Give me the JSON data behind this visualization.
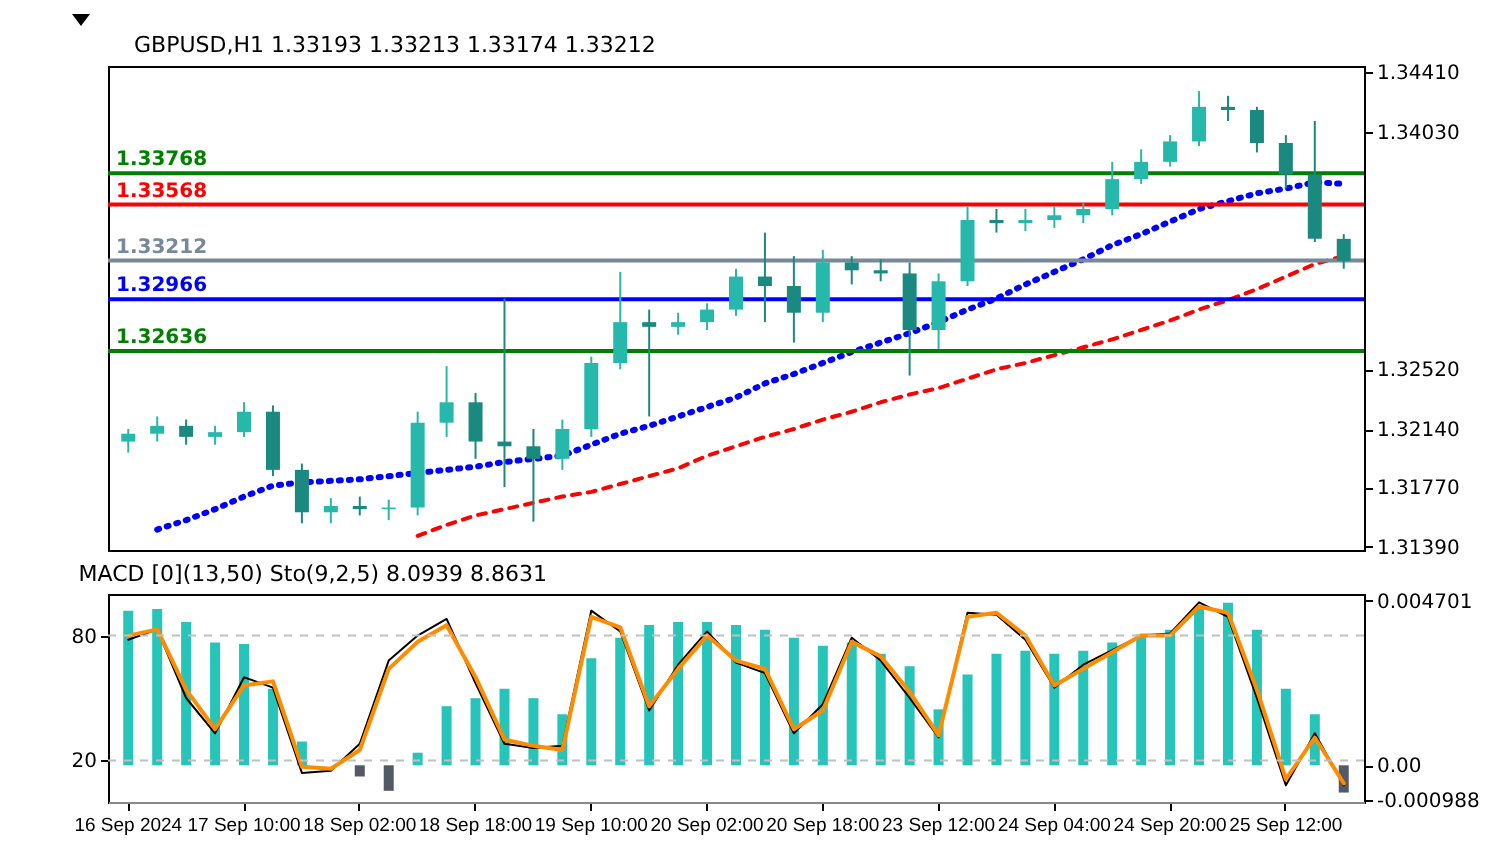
{
  "chart_data": [
    {
      "type": "candlestick",
      "title": "GBPUSD,H1 1.33193 1.33213 1.33174 1.33212",
      "categories": [
        null,
        null,
        null,
        null,
        null,
        null,
        null,
        null,
        null,
        null,
        null,
        null,
        null,
        null,
        null,
        null,
        null,
        null,
        null,
        null,
        null,
        null,
        null,
        null,
        null,
        null,
        null,
        null,
        null,
        null,
        null,
        null,
        null,
        null,
        null,
        null,
        null,
        null,
        null,
        null,
        null,
        null,
        null
      ],
      "ohlc": [
        [
          1.3206,
          1.3214,
          1.3199,
          1.3211
        ],
        [
          1.3211,
          1.3222,
          1.3206,
          1.3216
        ],
        [
          1.3216,
          1.322,
          1.3204,
          1.3209
        ],
        [
          1.3209,
          1.3216,
          1.3204,
          1.3212
        ],
        [
          1.3212,
          1.3231,
          1.3209,
          1.3225
        ],
        [
          1.3225,
          1.3229,
          1.3184,
          1.3188
        ],
        [
          1.3188,
          1.3192,
          1.3154,
          1.3161
        ],
        [
          1.3161,
          1.317,
          1.3154,
          1.3165
        ],
        [
          1.3165,
          1.3171,
          1.3159,
          1.3163
        ],
        [
          1.3163,
          1.3169,
          1.3156,
          1.3164
        ],
        [
          1.3164,
          1.3225,
          1.3159,
          1.3218
        ],
        [
          1.3218,
          1.3254,
          1.3209,
          1.3231
        ],
        [
          1.3231,
          1.3237,
          1.3195,
          1.3206
        ],
        [
          1.3206,
          1.3297,
          1.3177,
          1.3203
        ],
        [
          1.3203,
          1.3214,
          1.3155,
          1.3195
        ],
        [
          1.3195,
          1.322,
          1.3188,
          1.3214
        ],
        [
          1.3214,
          1.326,
          1.3209,
          1.3256
        ],
        [
          1.3256,
          1.3314,
          1.3252,
          1.3282
        ],
        [
          1.3282,
          1.329,
          1.3222,
          1.3279
        ],
        [
          1.3279,
          1.3288,
          1.3274,
          1.3282
        ],
        [
          1.3282,
          1.3294,
          1.3277,
          1.329
        ],
        [
          1.329,
          1.3316,
          1.3286,
          1.3311
        ],
        [
          1.3311,
          1.3339,
          1.3282,
          1.3305
        ],
        [
          1.3305,
          1.3324,
          1.3269,
          1.3288
        ],
        [
          1.3288,
          1.3328,
          1.3282,
          1.332
        ],
        [
          1.332,
          1.3324,
          1.3306,
          1.3315
        ],
        [
          1.3315,
          1.3322,
          1.3308,
          1.3313
        ],
        [
          1.3313,
          1.332,
          1.3248,
          1.3277
        ],
        [
          1.3277,
          1.3313,
          1.3265,
          1.3308
        ],
        [
          1.3308,
          1.3356,
          1.3305,
          1.3347
        ],
        [
          1.3347,
          1.3354,
          1.3339,
          1.3345
        ],
        [
          1.3345,
          1.3354,
          1.334,
          1.3347
        ],
        [
          1.3347,
          1.3356,
          1.3342,
          1.335
        ],
        [
          1.335,
          1.3358,
          1.3345,
          1.3354
        ],
        [
          1.3354,
          1.3384,
          1.335,
          1.3373
        ],
        [
          1.3373,
          1.3392,
          1.337,
          1.3384
        ],
        [
          1.3384,
          1.3401,
          1.3381,
          1.3397
        ],
        [
          1.3397,
          1.3429,
          1.3394,
          1.3419
        ],
        [
          1.3419,
          1.3426,
          1.341,
          1.3417
        ],
        [
          1.3417,
          1.3419,
          1.339,
          1.3396
        ],
        [
          1.3396,
          1.3401,
          1.3367,
          1.3376
        ],
        [
          1.3376,
          1.341,
          1.3333,
          1.3335
        ],
        [
          1.3335,
          1.3338,
          1.3316,
          1.3321
        ]
      ],
      "colors": [
        "#26b8ab",
        "#26b8ab",
        "#1a8a80",
        "#26b8ab",
        "#26b8ab",
        "#1a8a80",
        "#1a8a80",
        "#26b8ab",
        "#1a8a80",
        "#26b8ab",
        "#26b8ab",
        "#26b8ab",
        "#1a8a80",
        "#1a8a80",
        "#1a8a80",
        "#26b8ab",
        "#26b8ab",
        "#26b8ab",
        "#1a8a80",
        "#26b8ab",
        "#26b8ab",
        "#26b8ab",
        "#1a8a80",
        "#1a8a80",
        "#26b8ab",
        "#1a8a80",
        "#1a8a80",
        "#1a8a80",
        "#26b8ab",
        "#26b8ab",
        "#1a8a80",
        "#26b8ab",
        "#26b8ab",
        "#26b8ab",
        "#26b8ab",
        "#26b8ab",
        "#26b8ab",
        "#26b8ab",
        "#1a8a80",
        "#1a8a80",
        "#1a8a80",
        "#1a8a80",
        "#1a8a80"
      ],
      "series": [
        {
          "type": "line",
          "color": "#0000ff",
          "line_style": "dotted",
          "values": [
            null,
            1.315,
            1.3156,
            1.3163,
            1.3171,
            1.3178,
            1.318,
            1.3181,
            1.3182,
            1.3184,
            1.3186,
            1.3188,
            1.319,
            1.3193,
            1.3195,
            1.3197,
            1.3204,
            1.3211,
            1.3216,
            1.3222,
            1.3228,
            1.3234,
            1.3243,
            1.3249,
            1.3256,
            1.3263,
            1.3269,
            1.3275,
            1.3282,
            1.329,
            1.3297,
            1.3306,
            1.3314,
            1.3322,
            1.3331,
            1.3338,
            1.3346,
            1.3354,
            1.3359,
            1.3364,
            1.3367,
            1.3371,
            1.337
          ]
        },
        {
          "type": "line",
          "color": "#ff0000",
          "line_style": "dashed",
          "values": [
            null,
            null,
            null,
            null,
            null,
            null,
            null,
            null,
            null,
            null,
            1.3146,
            1.3153,
            1.3159,
            1.3163,
            1.3167,
            1.3171,
            1.3174,
            1.3179,
            1.3184,
            1.3189,
            1.3197,
            1.3203,
            1.3209,
            1.3214,
            1.322,
            1.3225,
            1.3231,
            1.3236,
            1.324,
            1.3246,
            1.3252,
            1.3256,
            1.3261,
            1.3266,
            1.3271,
            1.3277,
            1.3283,
            1.329,
            1.3296,
            1.3303,
            1.3311,
            1.3319,
            1.3324
          ]
        }
      ],
      "ylim": [
        1.3137,
        1.3445
      ],
      "yticks": [
        {
          "value": 1.3441,
          "label": "1.34410"
        },
        {
          "value": 1.3403,
          "label": "1.34030"
        },
        {
          "value": 1.3252,
          "label": "1.32520"
        },
        {
          "value": 1.3214,
          "label": "1.32140"
        },
        {
          "value": 1.3177,
          "label": "1.31770"
        },
        {
          "value": 1.3139,
          "label": "1.31390"
        }
      ],
      "ref_lines": [
        {
          "axis": "y",
          "value": 1.33768,
          "label": "1.33768",
          "color": "#008000"
        },
        {
          "axis": "y",
          "value": 1.33568,
          "label": "1.33568",
          "color": "#ff0000"
        },
        {
          "axis": "y",
          "value": 1.33212,
          "label": "1.33212",
          "color": "#778899"
        },
        {
          "axis": "y",
          "value": 1.32966,
          "label": "1.32966",
          "color": "#0000ff"
        },
        {
          "axis": "y",
          "value": 1.32636,
          "label": "1.32636",
          "color": "#008000"
        }
      ],
      "tick_labels": "y"
    },
    {
      "type": "bar",
      "title": "MACD [0](13,50) Sto(9,2,5) 8.0939 8.8631",
      "categories": [
        "16 Sep 2024",
        null,
        null,
        null,
        "17 Sep 10:00",
        null,
        null,
        null,
        "18 Sep 02:00",
        null,
        null,
        null,
        "18 Sep 18:00",
        null,
        null,
        null,
        "19 Sep 10:00",
        null,
        null,
        null,
        "20 Sep 02:00",
        null,
        null,
        null,
        "20 Sep 18:00",
        null,
        null,
        null,
        "23 Sep 12:00",
        null,
        null,
        null,
        "24 Sep 04:00",
        null,
        null,
        null,
        "24 Sep 20:00",
        null,
        null,
        null,
        "25 Sep 12:00",
        null,
        null
      ],
      "series": [
        {
          "type": "bar",
          "axis": "y2",
          "colors": [
            "#26c4b9",
            "#26c4b9",
            "#26c4b9",
            "#26c4b9",
            "#26c4b9",
            "#26c4b9",
            "#26c4b9",
            "#26c4b9",
            "#525a66",
            "#525a66",
            "#26c4b9",
            "#26c4b9",
            "#26c4b9",
            "#26c4b9",
            "#26c4b9",
            "#26c4b9",
            "#26c4b9",
            "#26c4b9",
            "#26c4b9",
            "#26c4b9",
            "#26c4b9",
            "#26c4b9",
            "#26c4b9",
            "#26c4b9",
            "#26c4b9",
            "#26c4b9",
            "#26c4b9",
            "#26c4b9",
            "#26c4b9",
            "#26c4b9",
            "#26c4b9",
            "#26c4b9",
            "#26c4b9",
            "#26c4b9",
            "#26c4b9",
            "#26c4b9",
            "#26c4b9",
            "#26c4b9",
            "#26c4b9",
            "#26c4b9",
            "#26c4b9",
            "#26c4b9",
            "#525a66"
          ],
          "values": [
            0.00442,
            0.00447,
            0.0041,
            0.00351,
            0.00347,
            0.00219,
            0.00068,
            0,
            -0.00032,
            -0.00073,
            0.00036,
            0.00169,
            0.00192,
            0.00219,
            0.00192,
            0.00146,
            0.00306,
            0.00365,
            0.00401,
            0.0041,
            0.0041,
            0.00401,
            0.00388,
            0.00365,
            0.00342,
            0.00351,
            0.00319,
            0.00283,
            0.0016,
            0.0026,
            0.00319,
            0.00328,
            0.00319,
            0.00328,
            0.00351,
            0.00374,
            0.00388,
            0.00447,
            0.00465,
            0.00388,
            0.00219,
            0.00146,
            -0.00078
          ]
        },
        {
          "type": "line",
          "color": "#000000",
          "values": [
            78,
            83,
            50,
            33,
            60,
            55,
            14,
            15,
            28,
            68,
            80,
            88,
            57,
            28,
            26,
            27,
            92,
            82,
            44,
            66,
            82,
            67,
            62,
            33,
            47,
            79,
            68,
            50,
            31,
            91,
            90,
            78,
            55,
            66,
            73,
            80,
            81,
            96,
            89,
            50,
            8,
            33,
            8
          ]
        },
        {
          "type": "line",
          "color": "#ff8c00",
          "values": [
            80,
            83,
            54,
            35,
            56,
            58,
            17,
            16,
            25,
            64,
            77,
            85,
            60,
            30,
            27,
            25,
            89,
            84,
            46,
            64,
            80,
            68,
            64,
            35,
            44,
            77,
            70,
            53,
            32,
            89,
            91,
            80,
            56,
            64,
            72,
            80,
            80,
            94,
            91,
            54,
            11,
            31,
            9
          ]
        }
      ],
      "ylim": [
        0,
        100
      ],
      "yticks": [
        20,
        80
      ],
      "y2lim": [
        -0.00105,
        0.0049
      ],
      "y2ticks": [
        0.004701,
        {
          "value": 0,
          "label": "0.00"
        },
        -0.000988
      ],
      "ref_lines": [
        {
          "axis": "y",
          "value": 80,
          "color": "#c0c0c0",
          "line_style": "dashed"
        },
        {
          "axis": "y",
          "value": 20,
          "color": "#c0c0c0",
          "line_style": "dashed"
        }
      ]
    }
  ]
}
